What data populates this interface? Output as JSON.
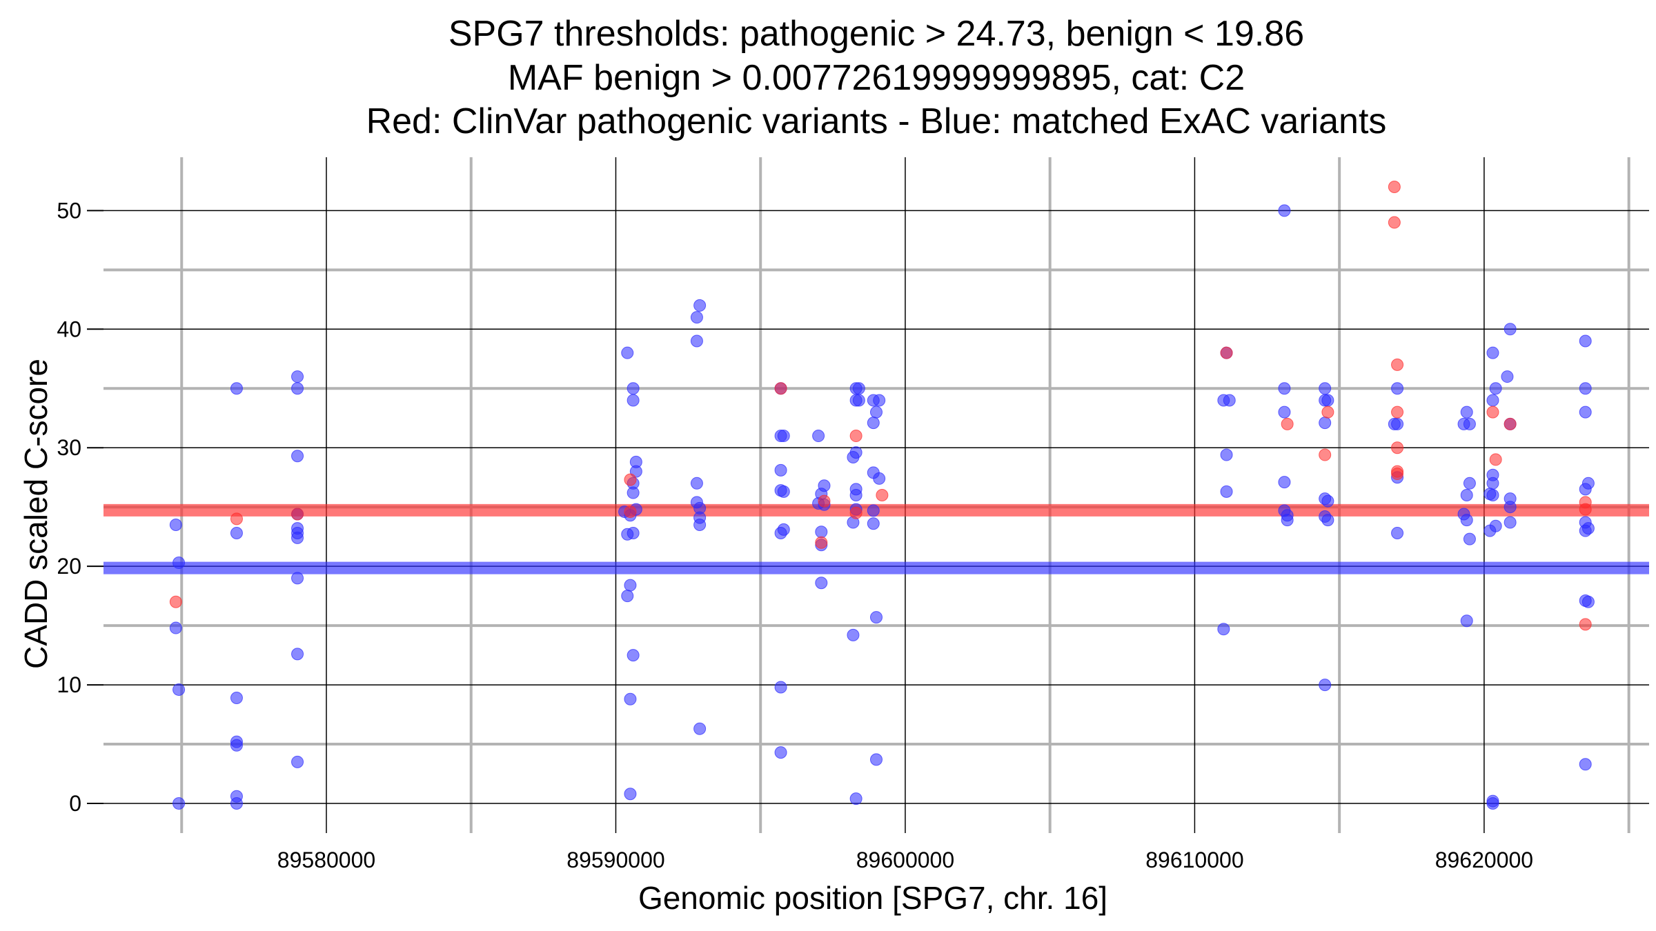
{
  "chart_data": {
    "type": "scatter",
    "title_lines": [
      "SPG7 thresholds: pathogenic > 24.73, benign < 19.86",
      "MAF benign > 0.00772619999999895, cat: C2",
      "Red: ClinVar pathogenic variants - Blue: matched ExAC variants"
    ],
    "xlabel": "Genomic position [SPG7, chr. 16]",
    "ylabel": "CADD scaled C-score",
    "xlim": [
      89572300,
      89625700
    ],
    "ylim": [
      -2.5,
      54.5
    ],
    "x_ticks": [
      89580000,
      89590000,
      89600000,
      89610000,
      89620000
    ],
    "x_tick_labels": [
      "89580000",
      "89590000",
      "89600000",
      "89610000",
      "89620000"
    ],
    "y_ticks": [
      0,
      10,
      20,
      30,
      40,
      50
    ],
    "y_tick_labels": [
      "0",
      "10",
      "20",
      "30",
      "40",
      "50"
    ],
    "x_minor_grid": [
      89575000,
      89585000,
      89595000,
      89605000,
      89615000,
      89625000
    ],
    "y_minor_grid": [
      5,
      15,
      25,
      35,
      45
    ],
    "grid": true,
    "thresholds": [
      {
        "name": "pathogenic",
        "value": 24.73,
        "color": "#ff3030"
      },
      {
        "name": "benign",
        "value": 19.86,
        "color": "#3030ff"
      }
    ],
    "series": [
      {
        "name": "ClinVar pathogenic variants",
        "color": "#ff2a2a",
        "points": [
          [
            89574800,
            17.0
          ],
          [
            89576900,
            24.0
          ],
          [
            89579000,
            24.4
          ],
          [
            89590500,
            27.3
          ],
          [
            89590500,
            24.6
          ],
          [
            89595700,
            35.0
          ],
          [
            89597100,
            22.0
          ],
          [
            89597200,
            25.5
          ],
          [
            89598300,
            31.0
          ],
          [
            89598300,
            24.5
          ],
          [
            89599200,
            26.0
          ],
          [
            89611100,
            38.0
          ],
          [
            89613200,
            32.0
          ],
          [
            89614500,
            29.4
          ],
          [
            89614600,
            33.0
          ],
          [
            89616900,
            52.0
          ],
          [
            89616900,
            49.0
          ],
          [
            89617000,
            37.0
          ],
          [
            89617000,
            33.0
          ],
          [
            89617000,
            30.0
          ],
          [
            89617000,
            28.0
          ],
          [
            89617000,
            27.8
          ],
          [
            89620300,
            33.0
          ],
          [
            89620400,
            29.0
          ],
          [
            89620900,
            32.0
          ],
          [
            89623500,
            25.4
          ],
          [
            89623500,
            24.8
          ],
          [
            89623500,
            15.1
          ]
        ]
      },
      {
        "name": "matched ExAC variants",
        "color": "#2a2aff",
        "points": [
          [
            89574800,
            23.5
          ],
          [
            89574900,
            20.3
          ],
          [
            89574800,
            14.8
          ],
          [
            89574900,
            9.6
          ],
          [
            89574900,
            0.0
          ],
          [
            89576900,
            35.0
          ],
          [
            89576900,
            22.8
          ],
          [
            89576900,
            8.9
          ],
          [
            89576900,
            5.2
          ],
          [
            89576900,
            4.9
          ],
          [
            89576900,
            0.6
          ],
          [
            89576900,
            0.0
          ],
          [
            89579000,
            36.0
          ],
          [
            89579000,
            35.0
          ],
          [
            89579000,
            29.3
          ],
          [
            89579000,
            24.4
          ],
          [
            89579000,
            23.2
          ],
          [
            89579000,
            22.8
          ],
          [
            89579000,
            22.4
          ],
          [
            89579000,
            19.0
          ],
          [
            89579000,
            12.6
          ],
          [
            89579000,
            3.5
          ],
          [
            89590400,
            38.0
          ],
          [
            89590600,
            35.0
          ],
          [
            89590600,
            34.0
          ],
          [
            89590700,
            28.8
          ],
          [
            89590700,
            28.0
          ],
          [
            89590600,
            27.0
          ],
          [
            89590600,
            26.2
          ],
          [
            89590300,
            24.6
          ],
          [
            89590500,
            24.3
          ],
          [
            89590700,
            24.8
          ],
          [
            89590400,
            22.7
          ],
          [
            89590600,
            22.8
          ],
          [
            89590500,
            18.4
          ],
          [
            89590400,
            17.5
          ],
          [
            89590600,
            12.5
          ],
          [
            89590500,
            8.8
          ],
          [
            89590500,
            0.8
          ],
          [
            89592900,
            42.0
          ],
          [
            89592800,
            41.0
          ],
          [
            89592800,
            39.0
          ],
          [
            89592800,
            27.0
          ],
          [
            89592800,
            25.4
          ],
          [
            89592900,
            24.9
          ],
          [
            89592900,
            24.1
          ],
          [
            89592900,
            23.5
          ],
          [
            89592900,
            6.3
          ],
          [
            89595700,
            35.0
          ],
          [
            89595700,
            31.0
          ],
          [
            89595800,
            31.0
          ],
          [
            89595700,
            28.1
          ],
          [
            89595700,
            26.4
          ],
          [
            89595800,
            26.3
          ],
          [
            89595800,
            23.1
          ],
          [
            89595700,
            22.8
          ],
          [
            89595700,
            9.8
          ],
          [
            89595700,
            4.3
          ],
          [
            89597000,
            31.0
          ],
          [
            89597200,
            26.8
          ],
          [
            89597100,
            26.1
          ],
          [
            89597000,
            25.3
          ],
          [
            89597200,
            25.2
          ],
          [
            89597100,
            22.9
          ],
          [
            89597100,
            21.8
          ],
          [
            89597100,
            18.6
          ],
          [
            89598300,
            35.0
          ],
          [
            89598400,
            35.0
          ],
          [
            89598300,
            34.0
          ],
          [
            89598400,
            34.0
          ],
          [
            89598300,
            29.6
          ],
          [
            89598200,
            29.2
          ],
          [
            89598300,
            26.5
          ],
          [
            89598300,
            26.0
          ],
          [
            89598300,
            24.8
          ],
          [
            89598200,
            23.7
          ],
          [
            89598200,
            14.2
          ],
          [
            89598300,
            0.4
          ],
          [
            89598900,
            34.0
          ],
          [
            89599100,
            34.0
          ],
          [
            89599000,
            33.0
          ],
          [
            89598900,
            32.1
          ],
          [
            89598900,
            27.9
          ],
          [
            89599100,
            27.4
          ],
          [
            89598900,
            24.7
          ],
          [
            89598900,
            23.6
          ],
          [
            89599000,
            15.7
          ],
          [
            89599000,
            3.7
          ],
          [
            89611100,
            38.0
          ],
          [
            89611000,
            34.0
          ],
          [
            89611200,
            34.0
          ],
          [
            89611100,
            29.4
          ],
          [
            89611100,
            26.3
          ],
          [
            89611000,
            14.7
          ],
          [
            89613100,
            50.0
          ],
          [
            89613100,
            35.0
          ],
          [
            89613100,
            33.0
          ],
          [
            89613100,
            27.1
          ],
          [
            89613100,
            24.7
          ],
          [
            89613200,
            24.3
          ],
          [
            89613200,
            23.9
          ],
          [
            89614500,
            35.0
          ],
          [
            89614500,
            34.0
          ],
          [
            89614600,
            34.0
          ],
          [
            89614500,
            32.1
          ],
          [
            89614500,
            25.7
          ],
          [
            89614600,
            25.5
          ],
          [
            89614500,
            24.2
          ],
          [
            89614600,
            23.9
          ],
          [
            89614500,
            10.0
          ],
          [
            89617000,
            35.0
          ],
          [
            89616900,
            32.0
          ],
          [
            89617000,
            32.0
          ],
          [
            89617000,
            27.5
          ],
          [
            89617000,
            22.8
          ],
          [
            89619400,
            33.0
          ],
          [
            89619300,
            32.0
          ],
          [
            89619500,
            32.0
          ],
          [
            89619500,
            27.0
          ],
          [
            89619400,
            26.0
          ],
          [
            89619300,
            24.4
          ],
          [
            89619400,
            23.9
          ],
          [
            89619500,
            22.3
          ],
          [
            89619400,
            15.4
          ],
          [
            89620300,
            38.0
          ],
          [
            89620400,
            35.0
          ],
          [
            89620300,
            34.0
          ],
          [
            89620300,
            27.7
          ],
          [
            89620300,
            27.0
          ],
          [
            89620200,
            26.1
          ],
          [
            89620300,
            26.0
          ],
          [
            89620400,
            23.4
          ],
          [
            89620200,
            23.0
          ],
          [
            89620300,
            0.2
          ],
          [
            89620300,
            0.0
          ],
          [
            89620900,
            40.0
          ],
          [
            89620800,
            36.0
          ],
          [
            89620900,
            32.0
          ],
          [
            89620900,
            25.7
          ],
          [
            89620900,
            25.0
          ],
          [
            89620900,
            23.7
          ],
          [
            89623500,
            39.0
          ],
          [
            89623500,
            35.0
          ],
          [
            89623500,
            33.0
          ],
          [
            89623600,
            27.0
          ],
          [
            89623500,
            26.5
          ],
          [
            89623500,
            23.7
          ],
          [
            89623600,
            23.2
          ],
          [
            89623500,
            23.0
          ],
          [
            89623500,
            17.1
          ],
          [
            89623600,
            17.0
          ],
          [
            89623500,
            3.3
          ]
        ]
      }
    ]
  }
}
